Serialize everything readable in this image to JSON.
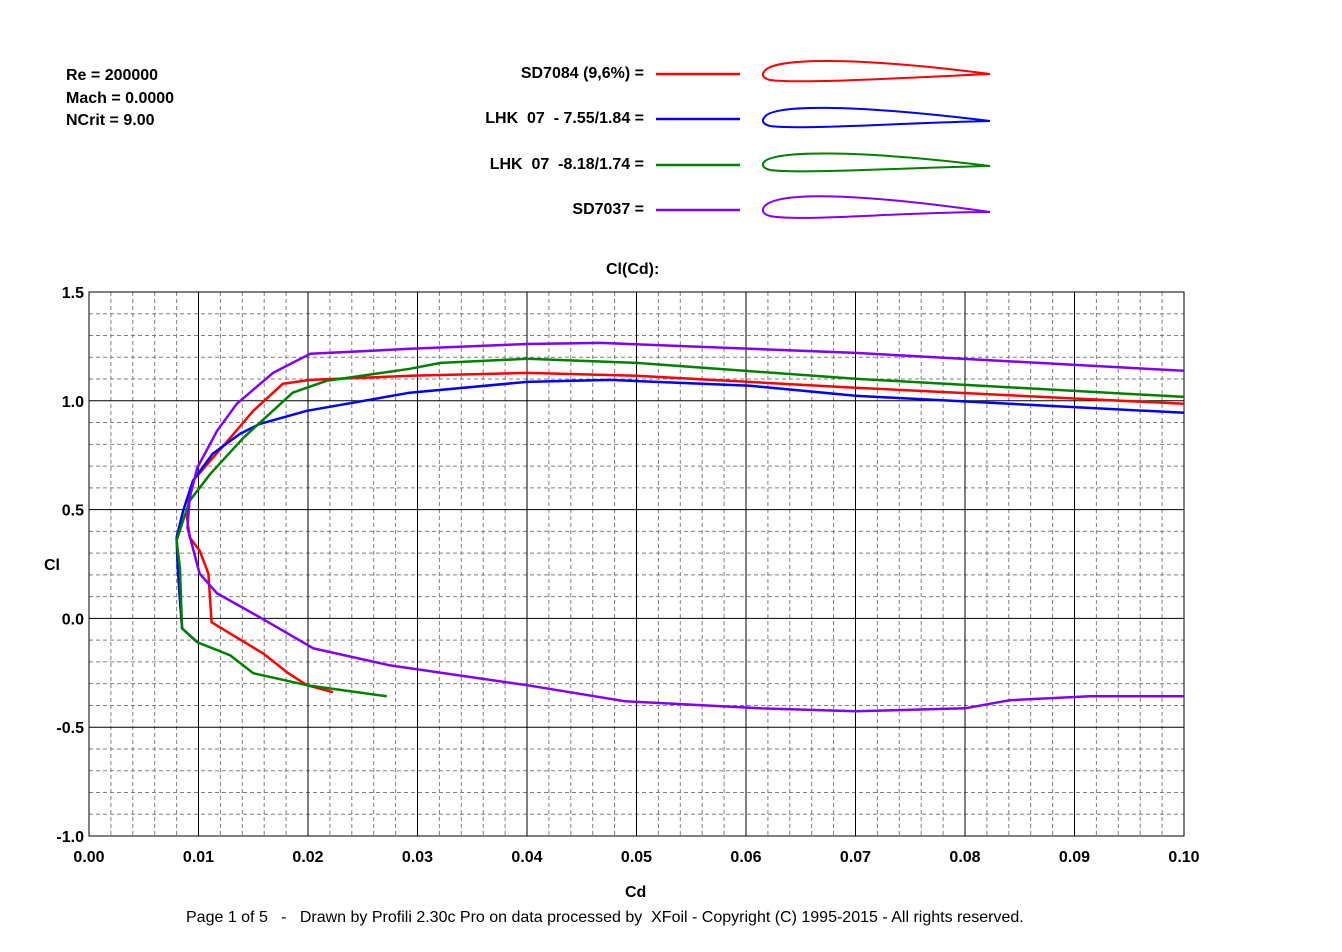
{
  "params": {
    "re": "Re = 200000",
    "mach": "Mach = 0.0000",
    "ncrit": "NCrit = 9.00"
  },
  "footer": "Page 1 of 5   -   Drawn by Profili 2.30c Pro on data processed by  XFoil - Copyright (C) 1995-2015 - All rights reserved.",
  "chart_data": {
    "type": "line",
    "title": "Cl(Cd):",
    "xlabel": "Cd",
    "ylabel": "Cl",
    "xlim": [
      0,
      0.1
    ],
    "ylim": [
      -1.0,
      1.5
    ],
    "xticks": [
      "0.00",
      "0.01",
      "0.02",
      "0.03",
      "0.04",
      "0.05",
      "0.06",
      "0.07",
      "0.08",
      "0.09",
      "0.10"
    ],
    "yticks": [
      "1.5",
      "1.0",
      "0.5",
      "0.0",
      "-0.5",
      "-1.0"
    ],
    "grid": true,
    "legend_placement": "top",
    "series": [
      {
        "name": "SD7084 (9,6%) =",
        "color": "#ff0000",
        "x": [
          0.0223,
          0.0199,
          0.0181,
          0.0159,
          0.0112,
          0.0109,
          0.0101,
          0.0092,
          0.0089,
          0.0095,
          0.0111,
          0.0129,
          0.015,
          0.0177,
          0.0202,
          0.0293,
          0.04,
          0.05,
          0.07,
          0.1
        ],
        "y": [
          -0.339,
          -0.307,
          -0.248,
          -0.161,
          -0.018,
          0.206,
          0.312,
          0.372,
          0.482,
          0.633,
          0.725,
          0.83,
          0.954,
          1.078,
          1.096,
          1.115,
          1.128,
          1.115,
          1.06,
          0.986
        ]
      },
      {
        "name": "LHK  07  - 7.55/1.84 =",
        "color": "#0000ff",
        "x": [
          0.0099,
          0.0085,
          0.0083,
          0.0081,
          0.008,
          0.0086,
          0.0095,
          0.0113,
          0.0138,
          0.0156,
          0.0199,
          0.0293,
          0.04,
          0.0476,
          0.0604,
          0.07,
          0.1
        ],
        "y": [
          -0.11,
          -0.046,
          0.083,
          0.234,
          0.372,
          0.495,
          0.633,
          0.757,
          0.849,
          0.894,
          0.954,
          1.037,
          1.087,
          1.096,
          1.069,
          1.023,
          0.945
        ]
      },
      {
        "name": "LHK  07  -8.18/1.74 =",
        "color": "#008000",
        "x": [
          0.0272,
          0.0199,
          0.015,
          0.0129,
          0.0099,
          0.0085,
          0.0083,
          0.008,
          0.0092,
          0.0111,
          0.0141,
          0.0186,
          0.0217,
          0.0293,
          0.0321,
          0.04,
          0.05,
          0.07,
          0.1
        ],
        "y": [
          -0.358,
          -0.307,
          -0.252,
          -0.17,
          -0.11,
          -0.046,
          0.234,
          0.358,
          0.541,
          0.665,
          0.83,
          1.037,
          1.092,
          1.147,
          1.174,
          1.193,
          1.174,
          1.101,
          1.018
        ]
      },
      {
        "name": "SD7037 =",
        "color": "#8000ff",
        "x": [
          0.1,
          0.0914,
          0.0841,
          0.08,
          0.07,
          0.0613,
          0.049,
          0.04,
          0.0275,
          0.0205,
          0.0156,
          0.0117,
          0.0101,
          0.009,
          0.0092,
          0.0099,
          0.0117,
          0.0135,
          0.0168,
          0.0202,
          0.0293,
          0.04,
          0.0467,
          0.07,
          0.1
        ],
        "y": [
          -0.358,
          -0.358,
          -0.376,
          -0.413,
          -0.427,
          -0.413,
          -0.381,
          -0.307,
          -0.216,
          -0.138,
          0.005,
          0.115,
          0.206,
          0.417,
          0.555,
          0.693,
          0.862,
          0.986,
          1.128,
          1.216,
          1.239,
          1.261,
          1.266,
          1.22,
          1.138
        ]
      }
    ]
  }
}
